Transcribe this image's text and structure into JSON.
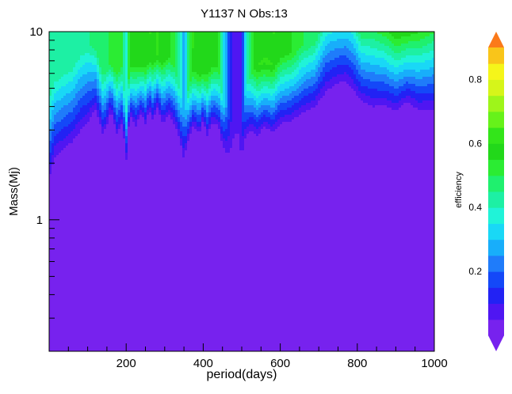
{
  "chart_data": {
    "type": "heatmap",
    "title": "Y1137 N Obs:13",
    "xlabel": "period(days)",
    "ylabel": "Mass(Mj)",
    "colorbar_label": "efficiency",
    "xlim": [
      0,
      1000
    ],
    "ylim": [
      0.2,
      10
    ],
    "y_scale": "log",
    "x_ticks": [
      200,
      400,
      600,
      800,
      1000
    ],
    "y_ticks": [
      1,
      10
    ],
    "colorbar_ticks": [
      0.2,
      0.4,
      0.6,
      0.8
    ],
    "colorbar_range": [
      0,
      0.9
    ],
    "grid": false,
    "contour_levels": [
      0.05,
      0.15,
      0.25,
      0.35,
      0.45,
      0.55
    ],
    "colormap": [
      {
        "v": 0.0,
        "color": "#7722ee"
      },
      {
        "v": 0.05,
        "color": "#4f16f2"
      },
      {
        "v": 0.1,
        "color": "#2222f4"
      },
      {
        "v": 0.15,
        "color": "#1448f8"
      },
      {
        "v": 0.2,
        "color": "#1f7cfa"
      },
      {
        "v": 0.25,
        "color": "#18aefa"
      },
      {
        "v": 0.3,
        "color": "#19d8f6"
      },
      {
        "v": 0.35,
        "color": "#20f3d8"
      },
      {
        "v": 0.4,
        "color": "#1df0a4"
      },
      {
        "v": 0.45,
        "color": "#1ff06e"
      },
      {
        "v": 0.5,
        "color": "#2bec33"
      },
      {
        "v": 0.55,
        "color": "#22d81a"
      },
      {
        "v": 0.6,
        "color": "#33e51a"
      },
      {
        "v": 0.65,
        "color": "#66f21a"
      },
      {
        "v": 0.7,
        "color": "#9ef51a"
      },
      {
        "v": 0.75,
        "color": "#d6f51a"
      },
      {
        "v": 0.8,
        "color": "#f5f51a"
      },
      {
        "v": 0.85,
        "color": "#f9c51a"
      },
      {
        "v": 0.9,
        "color": "#fb7a1a"
      }
    ],
    "efficiency_profile": {
      "period": [
        0,
        15,
        40,
        60,
        80,
        100,
        120,
        140,
        150,
        160,
        175,
        190,
        200,
        210,
        225,
        240,
        250,
        260,
        270,
        280,
        295,
        310,
        325,
        340,
        350,
        360,
        375,
        390,
        400,
        410,
        425,
        440,
        450,
        460,
        470,
        480,
        490,
        500,
        510,
        525,
        540,
        560,
        580,
        600,
        630,
        660,
        690,
        720,
        750,
        770,
        790,
        810,
        840,
        870,
        900,
        930,
        960,
        1000
      ],
      "transition_mass": [
        1.4,
        1.9,
        2.1,
        2.3,
        2.6,
        2.9,
        3.5,
        2.6,
        2.9,
        3.6,
        2.6,
        3.0,
        1.8,
        3.4,
        2.9,
        3.5,
        3.0,
        3.7,
        3.1,
        3.8,
        3.0,
        3.4,
        3.0,
        2.4,
        1.8,
        2.4,
        3.0,
        2.6,
        3.2,
        2.6,
        3.1,
        2.9,
        2.3,
        2.0,
        1.8,
        1.6,
        1.5,
        1.7,
        2.5,
        2.8,
        2.6,
        2.9,
        2.7,
        3.0,
        3.1,
        3.4,
        3.6,
        4.3,
        4.8,
        4.9,
        4.4,
        3.9,
        3.6,
        3.7,
        3.5,
        3.9,
        3.5,
        3.5
      ],
      "plateau": [
        0.45,
        0.4,
        0.4,
        0.42,
        0.4,
        0.42,
        0.5,
        0.46,
        0.48,
        0.55,
        0.5,
        0.52,
        0.35,
        0.6,
        0.55,
        0.62,
        0.58,
        0.62,
        0.58,
        0.62,
        0.55,
        0.58,
        0.52,
        0.4,
        0.25,
        0.45,
        0.62,
        0.55,
        0.62,
        0.55,
        0.6,
        0.55,
        0.4,
        0.25,
        0.12,
        0.06,
        0.05,
        0.12,
        0.35,
        0.52,
        0.6,
        0.65,
        0.62,
        0.58,
        0.55,
        0.5,
        0.48,
        0.4,
        0.38,
        0.38,
        0.42,
        0.48,
        0.5,
        0.55,
        0.6,
        0.64,
        0.55,
        0.5
      ],
      "spread": [
        0.55,
        0.45,
        0.45,
        0.45,
        0.45,
        0.45,
        0.4,
        0.35,
        0.35,
        0.3,
        0.35,
        0.35,
        0.3,
        0.3,
        0.35,
        0.3,
        0.35,
        0.3,
        0.35,
        0.3,
        0.35,
        0.35,
        0.35,
        0.3,
        0.3,
        0.3,
        0.35,
        0.35,
        0.3,
        0.35,
        0.35,
        0.35,
        0.3,
        0.3,
        0.3,
        0.3,
        0.3,
        0.3,
        0.3,
        0.35,
        0.4,
        0.4,
        0.4,
        0.4,
        0.4,
        0.4,
        0.4,
        0.4,
        0.35,
        0.35,
        0.4,
        0.4,
        0.45,
        0.45,
        0.45,
        0.45,
        0.45,
        0.45
      ]
    },
    "peaks": [
      {
        "period": 250,
        "mass": 6.0,
        "efficiency": 0.55
      },
      {
        "period": 410,
        "mass": 6.5,
        "efficiency": 0.55
      },
      {
        "period": 560,
        "mass": 7.5,
        "efficiency": 0.55
      },
      {
        "period": 950,
        "mass": 7.0,
        "efficiency": 0.55
      }
    ]
  }
}
